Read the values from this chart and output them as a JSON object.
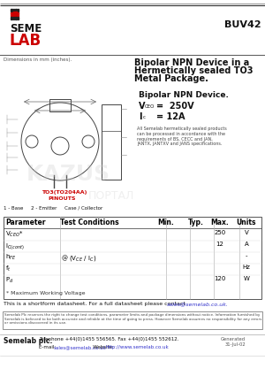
{
  "title_part": "BUV42",
  "header_line1": "Bipolar NPN Device in a",
  "header_line2": "Hermetically sealed TO3",
  "header_line3": "Metal Package.",
  "subheader": "Bipolar NPN Device.",
  "spec1_val": "=  250V",
  "spec2_val": "= 12A",
  "small_text": "All Semelab hermetically sealed products\ncan be processed in accordance with the\nrequirements of BS, CECC and JAN,\nJANTX, JANTXV and JANS specifications.",
  "dim_label": "Dimensions in mm (inches).",
  "pinout_label": "TO3(TO204AA)",
  "pinout_sub": "PINOUTS",
  "pin_desc": "1 - Base     2 - Emitter     Case / Collector",
  "table_headers": [
    "Parameter",
    "Test Conditions",
    "Min.",
    "Typ.",
    "Max.",
    "Units"
  ],
  "footnote": "* Maximum Working Voltage",
  "shortform_text": "This is a shortform datasheet. For a full datasheet please contact ",
  "shortform_email": "sales@semelab.co.uk.",
  "disclaimer": "Semelab Plc reserves the right to change test conditions, parameter limits and package dimensions without notice. Information furnished by Semelab is believed to be both accurate and reliable at the time of going to press. However Semelab assumes no responsibility for any errors or omissions discovered in its use.",
  "footer_company": "Semelab plc.",
  "footer_tel": "Telephone +44(0)1455 556565. Fax +44(0)1455 552612.",
  "footer_email_label": "E-mail: ",
  "footer_email": "sales@semelab.co.uk",
  "footer_web_label": "   Website: ",
  "footer_web": "http://www.semelab.co.uk",
  "footer_generated": "Generated\n31-Jul-02",
  "bg_color": "#ffffff",
  "text_color": "#000000",
  "red_color": "#cc0000",
  "blue_color": "#3333cc",
  "line_color": "#666666"
}
